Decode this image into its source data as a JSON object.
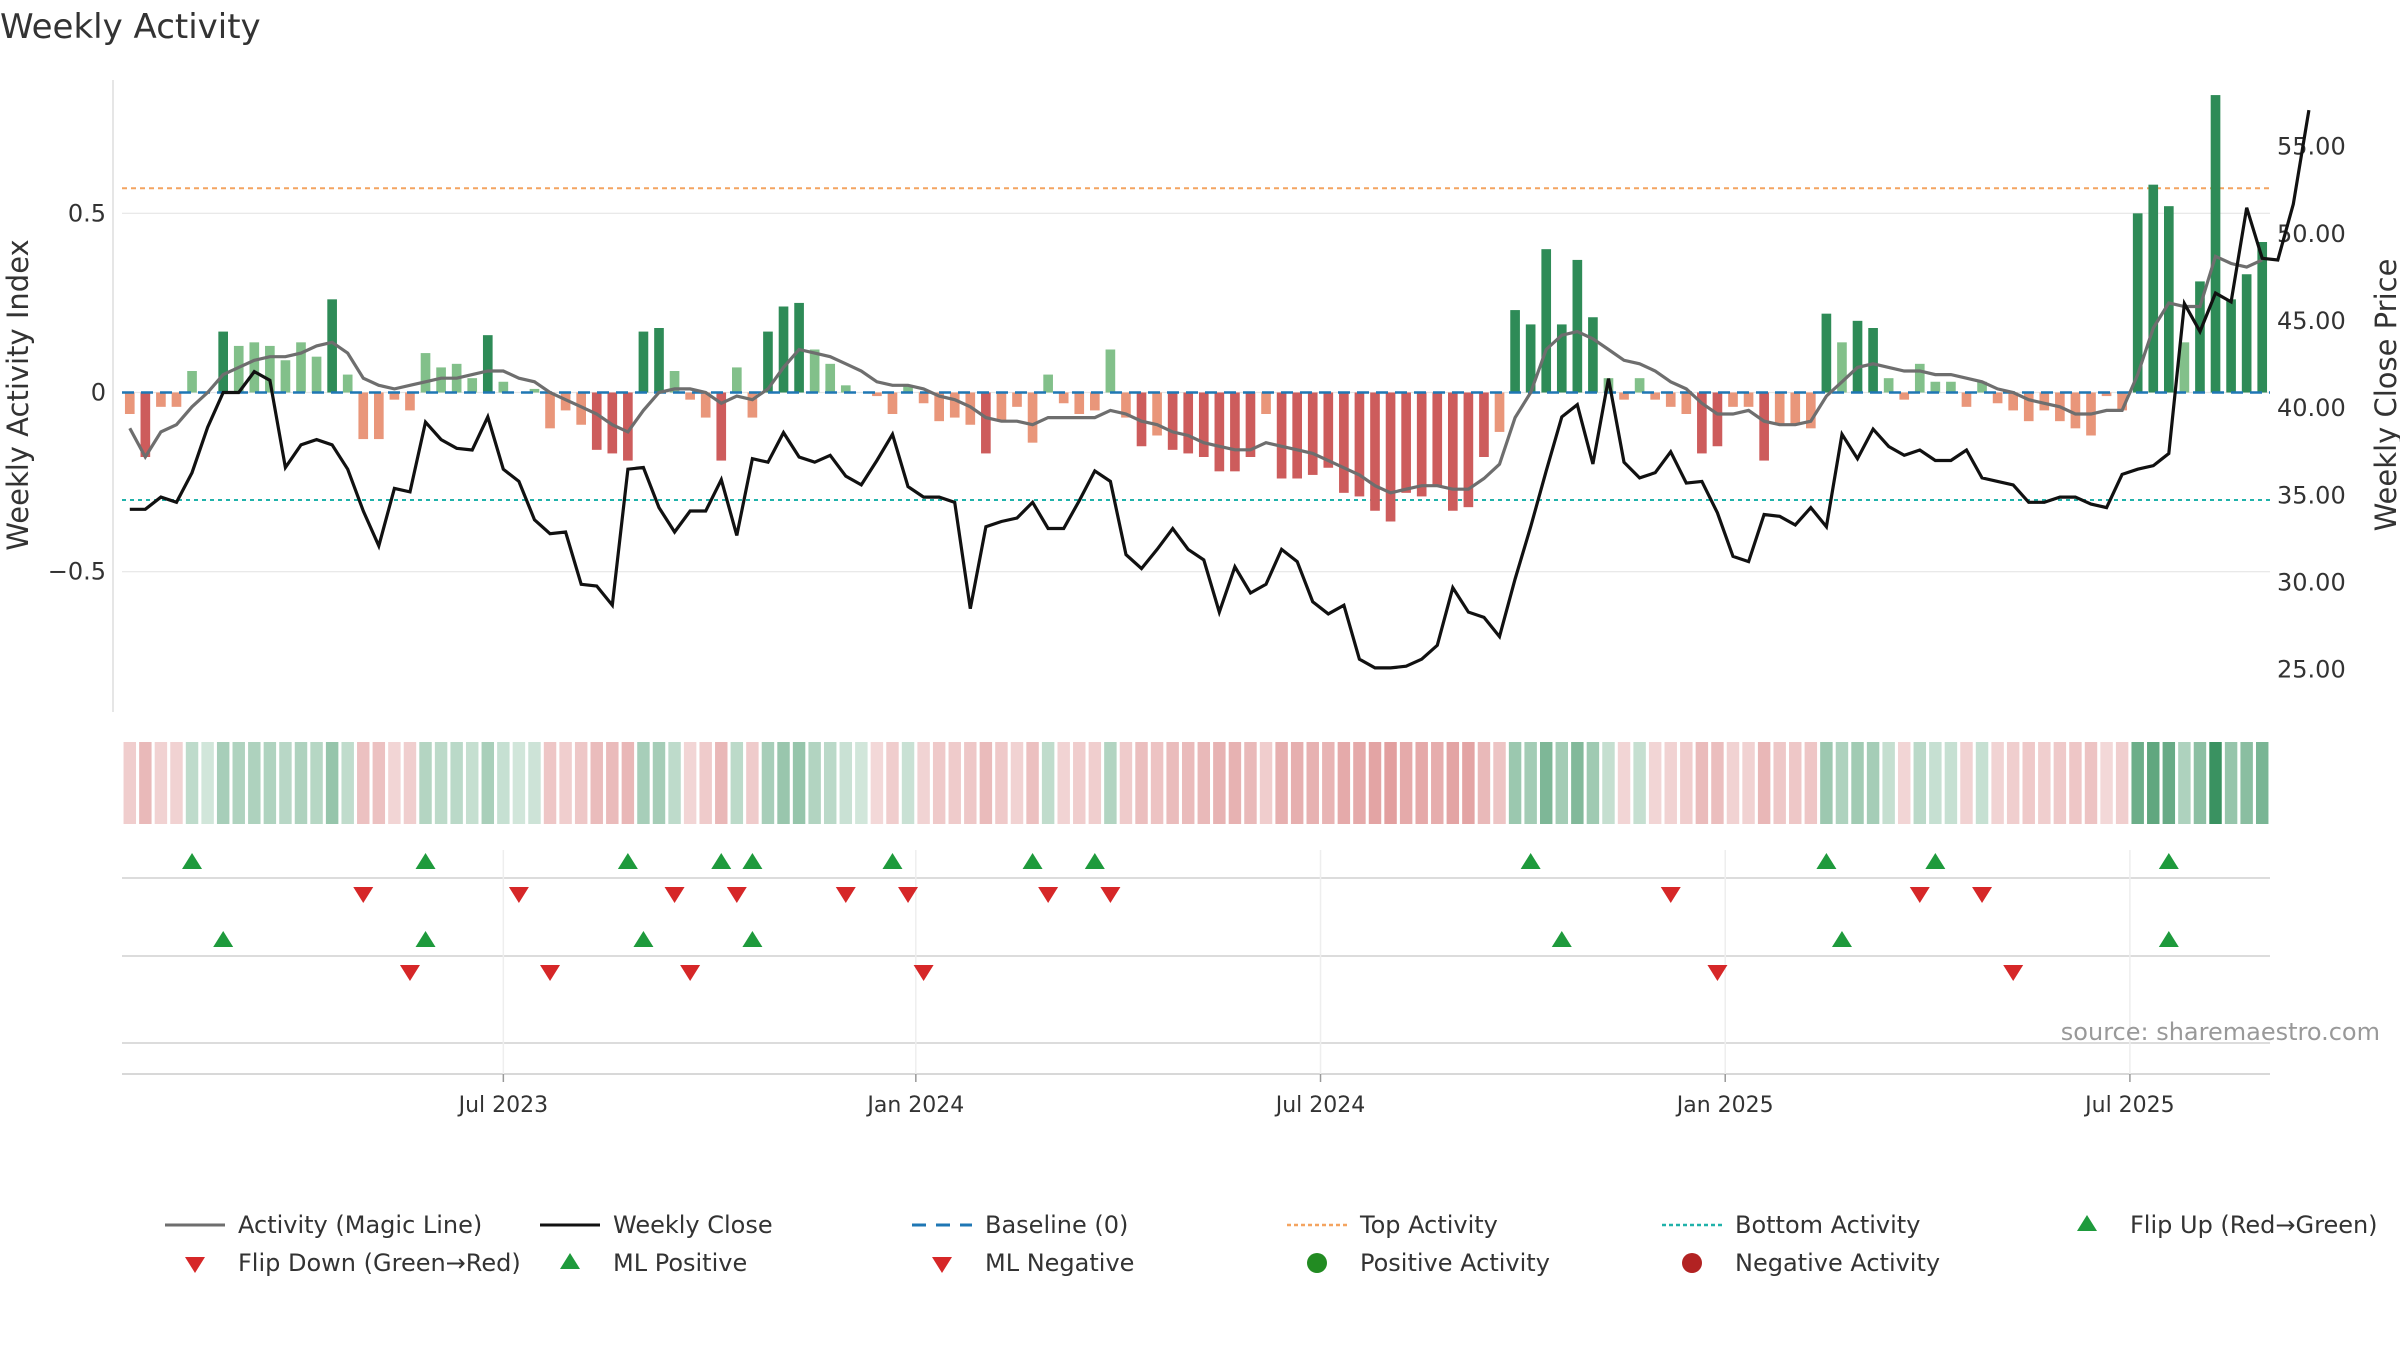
{
  "chart_data": {
    "type": "bar",
    "title": "Weekly Activity",
    "ylabel_left": "Weekly Activity Index",
    "ylabel_right": "Weekly Close Price",
    "source": "source: sharemaestro.com",
    "y_left_ticks": [
      {
        "v": 0.5,
        "label": "0.5"
      },
      {
        "v": 0,
        "label": "0"
      },
      {
        "v": -0.5,
        "label": "−0.5"
      }
    ],
    "y_right_ticks": [
      {
        "v": 55,
        "label": "55.00"
      },
      {
        "v": 50,
        "label": "50.00"
      },
      {
        "v": 45,
        "label": "45.00"
      },
      {
        "v": 40,
        "label": "40.00"
      },
      {
        "v": 35,
        "label": "35.00"
      },
      {
        "v": 30,
        "label": "30.00"
      },
      {
        "v": 25,
        "label": "25.00"
      }
    ],
    "ylim_left": [
      -0.9,
      0.9
    ],
    "ylim_right": [
      22.4,
      59.4
    ],
    "x_ticks": [
      {
        "week": 24,
        "label": "Jul 2023"
      },
      {
        "week": 50.5,
        "label": "Jan 2024"
      },
      {
        "week": 76.5,
        "label": "Jul 2024"
      },
      {
        "week": 102.5,
        "label": "Jan 2025"
      },
      {
        "week": 128.5,
        "label": "Jul 2025"
      }
    ],
    "top_activity": 0.57,
    "bottom_activity": -0.3,
    "baseline": 0,
    "activity": [
      -0.06,
      -0.18,
      -0.04,
      -0.04,
      0.06,
      0,
      0.17,
      0.13,
      0.14,
      0.13,
      0.09,
      0.14,
      0.1,
      0.26,
      0.05,
      -0.13,
      -0.13,
      -0.02,
      -0.05,
      0.11,
      0.07,
      0.08,
      0.04,
      0.16,
      0.03,
      0,
      0.01,
      -0.1,
      -0.05,
      -0.09,
      -0.16,
      -0.17,
      -0.19,
      0.17,
      0.18,
      0.06,
      -0.02,
      -0.07,
      -0.19,
      0.07,
      -0.07,
      0.17,
      0.24,
      0.25,
      0.12,
      0.08,
      0.02,
      0,
      -0.01,
      -0.06,
      0.02,
      -0.03,
      -0.08,
      -0.07,
      -0.09,
      -0.17,
      -0.08,
      -0.04,
      -0.14,
      0.05,
      -0.03,
      -0.06,
      -0.05,
      0.12,
      -0.07,
      -0.15,
      -0.12,
      -0.16,
      -0.17,
      -0.18,
      -0.22,
      -0.22,
      -0.18,
      -0.06,
      -0.24,
      -0.24,
      -0.23,
      -0.21,
      -0.28,
      -0.29,
      -0.33,
      -0.36,
      -0.28,
      -0.29,
      -0.26,
      -0.33,
      -0.32,
      -0.18,
      -0.11,
      0.23,
      0.19,
      0.4,
      0.19,
      0.37,
      0.21,
      0.04,
      -0.02,
      0.04,
      -0.02,
      -0.04,
      -0.06,
      -0.17,
      -0.15,
      -0.04,
      -0.04,
      -0.19,
      -0.09,
      -0.09,
      -0.1,
      0.22,
      0.14,
      0.2,
      0.18,
      0.04,
      -0.02,
      0.08,
      0.03,
      0.03,
      -0.04,
      0.03,
      -0.03,
      -0.05,
      -0.08,
      -0.05,
      -0.08,
      -0.1,
      -0.12,
      -0.01,
      -0.05,
      0.5,
      0.58,
      0.52,
      0.14,
      0.31,
      0.83,
      0.26,
      0.33,
      0.42
    ],
    "magic_line": [
      -0.1,
      -0.18,
      -0.11,
      -0.09,
      -0.04,
      0,
      0.05,
      0.07,
      0.09,
      0.1,
      0.1,
      0.11,
      0.13,
      0.14,
      0.11,
      0.04,
      0.02,
      0.01,
      0.02,
      0.03,
      0.04,
      0.04,
      0.05,
      0.06,
      0.06,
      0.04,
      0.03,
      0,
      -0.02,
      -0.04,
      -0.06,
      -0.09,
      -0.11,
      -0.05,
      0,
      0.01,
      0.01,
      0,
      -0.03,
      -0.01,
      -0.02,
      0.01,
      0.07,
      0.12,
      0.11,
      0.1,
      0.08,
      0.06,
      0.03,
      0.02,
      0.02,
      0.01,
      -0.01,
      -0.02,
      -0.04,
      -0.07,
      -0.08,
      -0.08,
      -0.09,
      -0.07,
      -0.07,
      -0.07,
      -0.07,
      -0.05,
      -0.06,
      -0.08,
      -0.09,
      -0.11,
      -0.12,
      -0.14,
      -0.15,
      -0.16,
      -0.16,
      -0.14,
      -0.15,
      -0.16,
      -0.17,
      -0.19,
      -0.21,
      -0.23,
      -0.26,
      -0.28,
      -0.27,
      -0.26,
      -0.26,
      -0.27,
      -0.27,
      -0.24,
      -0.2,
      -0.07,
      0,
      0.12,
      0.16,
      0.17,
      0.15,
      0.12,
      0.09,
      0.08,
      0.06,
      0.03,
      0.01,
      -0.03,
      -0.06,
      -0.06,
      -0.05,
      -0.08,
      -0.09,
      -0.09,
      -0.08,
      -0.01,
      0.03,
      0.07,
      0.08,
      0.07,
      0.06,
      0.06,
      0.05,
      0.05,
      0.04,
      0.03,
      0.01,
      0,
      -0.02,
      -0.03,
      -0.04,
      -0.06,
      -0.06,
      -0.05,
      -0.05,
      0.05,
      0.18,
      0.25,
      0.24,
      0.24,
      0.38,
      0.36,
      0.35,
      0.37
    ],
    "weekly_close": [
      34.2,
      34.2,
      34.9,
      34.6,
      36.3,
      38.9,
      40.9,
      40.9,
      42.1,
      41.6,
      36.6,
      37.9,
      38.2,
      37.9,
      36.5,
      34.1,
      32.1,
      35.4,
      35.2,
      39.2,
      38.2,
      37.7,
      37.6,
      39.5,
      36.5,
      35.8,
      33.6,
      32.8,
      32.9,
      29.9,
      29.8,
      28.7,
      36.5,
      36.6,
      34.3,
      32.9,
      34.1,
      34.1,
      35.9,
      32.7,
      37.1,
      36.9,
      38.6,
      37.2,
      36.9,
      37.3,
      36.1,
      35.6,
      37,
      38.5,
      35.5,
      34.9,
      34.9,
      34.6,
      28.5,
      33.2,
      33.5,
      33.7,
      34.6,
      33.1,
      33.1,
      34.7,
      36.4,
      35.8,
      31.6,
      30.8,
      31.9,
      33.1,
      31.9,
      31.3,
      28.3,
      30.9,
      29.4,
      29.9,
      31.9,
      31.2,
      28.9,
      28.2,
      28.7,
      25.6,
      25.1,
      25.1,
      25.2,
      25.6,
      26.4,
      29.7,
      28.3,
      28,
      26.9,
      30.2,
      33.2,
      36.4,
      39.5,
      40.2,
      36.8,
      41.7,
      36.9,
      36,
      36.3,
      37.5,
      35.7,
      35.8,
      34,
      31.5,
      31.2,
      33.9,
      33.8,
      33.3,
      34.3,
      33.2,
      38.5,
      37.1,
      38.8,
      37.8,
      37.3,
      37.6,
      37,
      37,
      37.6,
      36,
      35.8,
      35.6,
      34.6,
      34.6,
      34.9,
      34.9,
      34.5,
      34.3,
      36.2,
      36.5,
      36.7,
      37.4,
      46,
      44.4,
      46.6,
      46.1,
      51.5,
      48.6,
      48.5,
      51.7,
      57.1
    ],
    "flip_up_weeks": [
      4,
      19,
      32,
      38,
      40,
      49,
      58,
      62,
      90,
      109,
      116,
      131
    ],
    "flip_down_weeks": [
      15,
      25,
      35,
      39,
      46,
      50,
      59,
      63,
      99,
      115,
      119
    ],
    "ml_positive_weeks": [
      6,
      19,
      33,
      40,
      92,
      110,
      131
    ],
    "ml_negative_weeks": [
      18,
      27,
      36,
      51,
      102,
      121
    ],
    "colors": {
      "strong_green": "#2e8b57",
      "light_green": "#82c08a",
      "strong_red": "#cd5c5c",
      "light_red": "#e9967a",
      "magic_line": "#6e6e6e",
      "close_line": "#111111",
      "baseline": "#1f77b4",
      "top_activity": "#f4a460",
      "bottom_activity": "#20b2aa",
      "marker_up": "#1e9a3c",
      "marker_down": "#d62728",
      "positive_activity": "#228b22",
      "negative_activity": "#b22222",
      "grid": "#e6e6e6"
    }
  },
  "legend": [
    {
      "label": "Activity (Magic Line)",
      "kind": "line-gray"
    },
    {
      "label": "Weekly Close",
      "kind": "line-black"
    },
    {
      "label": "Baseline (0)",
      "kind": "dash-blue"
    },
    {
      "label": "Top Activity",
      "kind": "dot-orange"
    },
    {
      "label": "Bottom Activity",
      "kind": "dot-cyan"
    },
    {
      "label": "Flip Up (Red→Green)",
      "kind": "tri-up"
    },
    {
      "label": "Flip Down (Green→Red)",
      "kind": "tri-down"
    },
    {
      "label": "ML Positive",
      "kind": "tri-up"
    },
    {
      "label": "ML Negative",
      "kind": "tri-down"
    },
    {
      "label": "Positive Activity",
      "kind": "circle-green"
    },
    {
      "label": "Negative Activity",
      "kind": "circle-red"
    }
  ]
}
